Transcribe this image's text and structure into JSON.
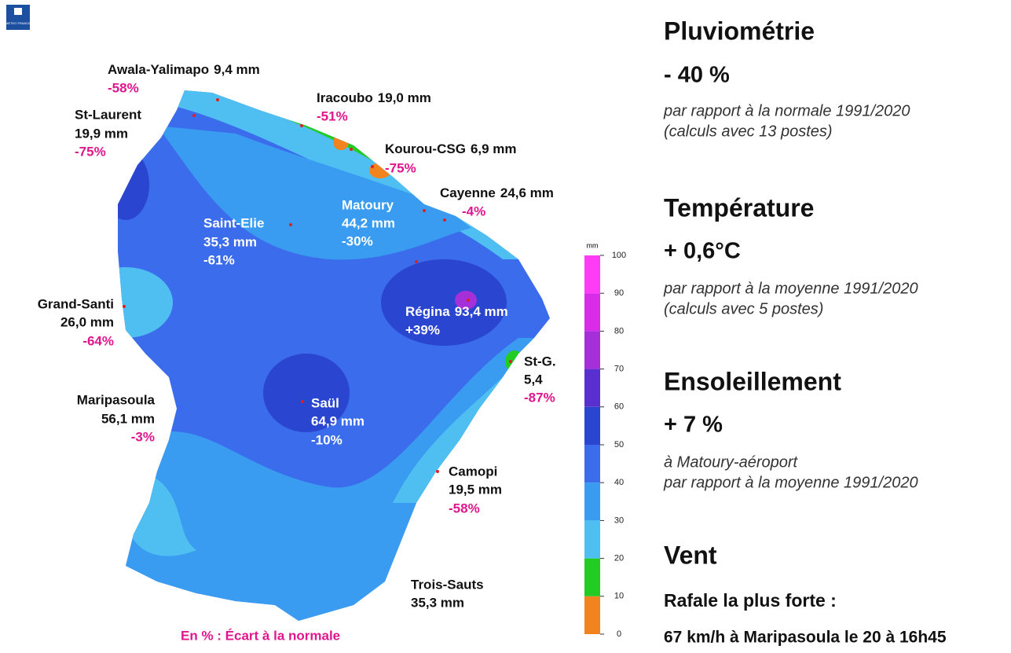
{
  "logo": "METEO FRANCE",
  "map": {
    "stations": [
      {
        "name": "Awala-Yalimapo",
        "amount": "9,4 mm",
        "deviation": "-58%"
      },
      {
        "name": "St-Laurent",
        "amount": "19,9 mm",
        "deviation": "-75%"
      },
      {
        "name": "Iracoubo",
        "amount": "19,0 mm",
        "deviation": "-51%"
      },
      {
        "name": "Kourou-CSG",
        "amount": "6,9 mm",
        "deviation": "-75%"
      },
      {
        "name": "Cayenne",
        "amount": "24,6 mm",
        "deviation": "-4%"
      },
      {
        "name": "Saint-Elie",
        "amount": "35,3 mm",
        "deviation": "-61%"
      },
      {
        "name": "Matoury",
        "amount": "44,2 mm",
        "deviation": "-30%"
      },
      {
        "name": "Régina",
        "amount": "93,4 mm",
        "deviation": "+39%"
      },
      {
        "name": "Grand-Santi",
        "amount": "26,0 mm",
        "deviation": "-64%"
      },
      {
        "name": "Maripasoula",
        "amount": "56,1 mm",
        "deviation": "-3%"
      },
      {
        "name": "Saül",
        "amount": "64,9 mm",
        "deviation": "-10%"
      },
      {
        "name": "St-G.",
        "amount": "5,4",
        "deviation": "-87%"
      },
      {
        "name": "Camopi",
        "amount": "19,5 mm",
        "deviation": "-58%"
      },
      {
        "name": "Trois-Sauts",
        "amount": "35,3 mm"
      }
    ],
    "footnote": "En % : Écart à la normale",
    "legend": {
      "unit": "mm",
      "ticks": [
        0,
        10,
        20,
        30,
        40,
        50,
        60,
        70,
        80,
        90,
        100
      ],
      "colors": [
        "#f28420",
        "#22cc22",
        "#4fbff2",
        "#3a9cf0",
        "#3b6cec",
        "#2a45d0",
        "#5a2fcf",
        "#a52fd8",
        "#d82ce8",
        "#ff3cf5"
      ]
    }
  },
  "summary": [
    {
      "title": "Pluviométrie",
      "value": "- 40 %",
      "notes": [
        "par rapport à la normale 1991/2020",
        "(calculs avec 13 postes)"
      ]
    },
    {
      "title": "Température",
      "value": "+ 0,6°C",
      "notes": [
        "par rapport à la moyenne 1991/2020",
        "(calculs avec 5 postes)"
      ]
    },
    {
      "title": "Ensoleillement",
      "value": "+ 7 %",
      "notes": [
        "à Matoury-aéroport",
        "par rapport à la moyenne 1991/2020"
      ]
    },
    {
      "title": "Vent",
      "value": "Rafale la plus forte :",
      "notes": [
        "67 km/h à Maripasoula le 20 à 16h45"
      ]
    }
  ]
}
